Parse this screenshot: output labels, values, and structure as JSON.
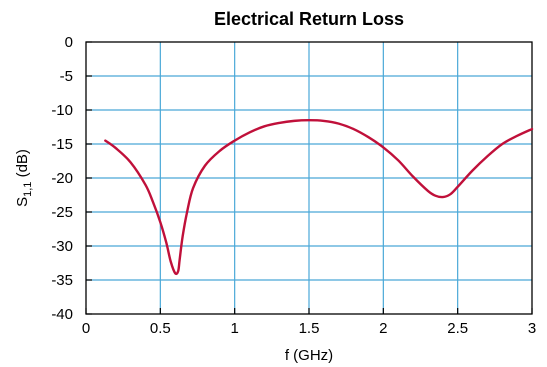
{
  "chart_data": {
    "type": "line",
    "title": "Electrical Return Loss",
    "xlabel": "f (GHz)",
    "ylabel_main": "S",
    "ylabel_sub": "1,1",
    "ylabel_unit": " (dB)",
    "xlim": [
      0,
      3
    ],
    "ylim": [
      -40,
      0
    ],
    "xticks": [
      "0",
      "0.5",
      "1",
      "1.5",
      "2",
      "2.5",
      "3"
    ],
    "yticks": [
      "0",
      "-5",
      "-10",
      "-15",
      "-20",
      "-25",
      "-30",
      "-35",
      "-40"
    ],
    "grid": true,
    "colors": {
      "line": "#c0103a",
      "grid": "#4aa8d8"
    },
    "series": [
      {
        "x": [
          0.13,
          0.2,
          0.3,
          0.4,
          0.45,
          0.5,
          0.54,
          0.57,
          0.6,
          0.62,
          0.63,
          0.65,
          0.68,
          0.72,
          0.8,
          0.9,
          1.0,
          1.1,
          1.2,
          1.3,
          1.4,
          1.5,
          1.6,
          1.7,
          1.8,
          1.9,
          2.0,
          2.1,
          2.2,
          2.3,
          2.35,
          2.4,
          2.45,
          2.5,
          2.6,
          2.7,
          2.8,
          2.9,
          3.0
        ],
        "y": [
          -14.5,
          -15.6,
          -17.7,
          -21.0,
          -23.5,
          -26.5,
          -29.5,
          -32.3,
          -34.0,
          -33.7,
          -32.0,
          -28.6,
          -25.0,
          -21.5,
          -18.2,
          -16.0,
          -14.5,
          -13.3,
          -12.4,
          -11.9,
          -11.6,
          -11.5,
          -11.6,
          -12.0,
          -12.8,
          -14.0,
          -15.5,
          -17.4,
          -19.8,
          -21.9,
          -22.6,
          -22.8,
          -22.4,
          -21.3,
          -18.9,
          -16.8,
          -15.0,
          -13.8,
          -12.8
        ]
      }
    ]
  }
}
